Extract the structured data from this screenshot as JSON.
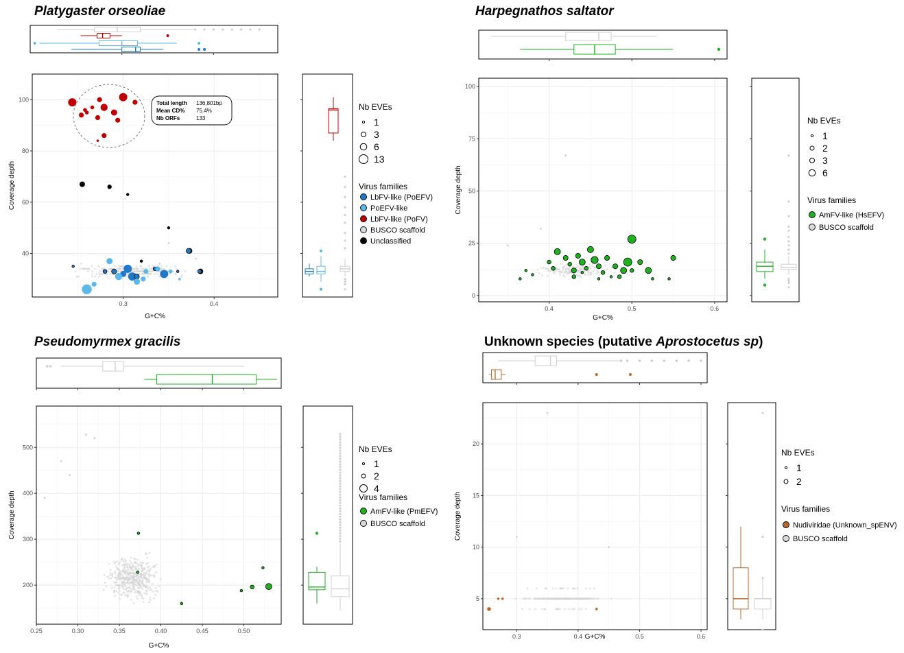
{
  "colors": {
    "lbfv_poefv": "#1f78c8",
    "poefv": "#5bb8e8",
    "lbfv_pofv": "#c00000",
    "unclassified": "#000000",
    "busco": "#d9d9d9",
    "green": "#1fb21f",
    "brown": "#b8682e",
    "grid": "#ebebeb"
  },
  "panels": [
    {
      "title_parts": [
        {
          "text": "Platygaster orseoliae",
          "italic": true
        }
      ],
      "xlabel": "G+C%",
      "ylabel": "Coverage depth",
      "xticks": [
        "0.3",
        "0.4"
      ],
      "yticks": [
        "40",
        "60",
        "80",
        "100"
      ],
      "legend": {
        "size_title": "Nb EVEs",
        "sizes": [
          "1",
          "3",
          "6",
          "13"
        ],
        "family_title": "Virus families",
        "families": [
          {
            "label": "LbFV-like (PoEFV)",
            "color": "#1f78c8"
          },
          {
            "label": "PoEFV-like",
            "color": "#5bb8e8"
          },
          {
            "label": "LbFV-like (PoFV)",
            "color": "#c00000"
          },
          {
            "label": "BUSCO scaffold",
            "color": "#d9d9d9"
          },
          {
            "label": "Unclassified",
            "color": "#000000"
          }
        ]
      },
      "annotation": {
        "rows": [
          {
            "key": "Total length",
            "value": "136,801bp"
          },
          {
            "key": "Mean CD%",
            "value": "75.4%"
          },
          {
            "key": "Nb ORFs",
            "value": "133"
          }
        ]
      }
    },
    {
      "title_parts": [
        {
          "text": "Harpegnathos saltator",
          "italic": true
        }
      ],
      "xlabel": "G+C%",
      "ylabel": "Coverage depth",
      "xticks": [
        "0.4",
        "0.5",
        "0.6"
      ],
      "yticks": [
        "0",
        "25",
        "50",
        "75",
        "100"
      ],
      "legend": {
        "size_title": "Nb EVEs",
        "sizes": [
          "1",
          "2",
          "3",
          "6"
        ],
        "family_title": "Virus families",
        "families": [
          {
            "label": "AmFV-like (HsEFV)",
            "color": "#1fb21f"
          },
          {
            "label": "BUSCO scaffold",
            "color": "#d9d9d9"
          }
        ]
      }
    },
    {
      "title_parts": [
        {
          "text": "Pseudomyrmex gracilis",
          "italic": true
        }
      ],
      "xlabel": "G+C%",
      "ylabel": "Coverage depth",
      "xticks": [
        "0.25",
        "0.30",
        "0.35",
        "0.40",
        "0.45",
        "0.50"
      ],
      "yticks": [
        "200",
        "300",
        "400",
        "500"
      ],
      "legend": {
        "size_title": "Nb EVEs",
        "sizes": [
          "1",
          "2",
          "4"
        ],
        "family_title": "Virus families",
        "families": [
          {
            "label": "AmFV-like (PmEFV)",
            "color": "#1fb21f"
          },
          {
            "label": "BUSCO scaffold",
            "color": "#d9d9d9"
          }
        ]
      }
    },
    {
      "title_parts": [
        {
          "text": "Unknown species (putative ",
          "italic": false
        },
        {
          "text": "Aprostocetus sp",
          "italic": true
        },
        {
          "text": ")",
          "italic": false
        }
      ],
      "xlabel": "G+C%",
      "ylabel": "Coverage depth",
      "xticks": [
        "0.3",
        "0.4",
        "0.5",
        "0.6"
      ],
      "yticks": [
        "5",
        "10",
        "15",
        "20"
      ],
      "legend": {
        "size_title": "Nb EVEs",
        "sizes": [
          "1",
          "2"
        ],
        "family_title": "Virus families",
        "families": [
          {
            "label": "Nudiviridae (Unknown_spENV)",
            "color": "#b8682e"
          },
          {
            "label": "BUSCO scaffold",
            "color": "#d9d9d9"
          }
        ]
      }
    }
  ],
  "chart_data": [
    {
      "type": "scatter",
      "xlim": [
        0.2,
        0.47
      ],
      "ylim": [
        23,
        110
      ],
      "grid": true,
      "series": [
        {
          "name": "LbFV-like (PoFV)",
          "color": "#c00000",
          "points": [
            [
              0.244,
              99,
              6
            ],
            [
              0.254,
              94,
              3
            ],
            [
              0.258,
              96,
              2
            ],
            [
              0.266,
              97,
              2
            ],
            [
              0.274,
              100,
              3
            ],
            [
              0.279,
              97,
              5
            ],
            [
              0.272,
              93,
              3
            ],
            [
              0.29,
              95,
              4
            ],
            [
              0.294,
              92,
              3
            ],
            [
              0.3,
              101,
              6
            ],
            [
              0.313,
              99,
              3
            ],
            [
              0.272,
              84,
              1
            ],
            [
              0.279,
              86,
              3
            ],
            [
              0.26,
              95,
              2
            ]
          ]
        },
        {
          "name": "Unclassified",
          "color": "#000000",
          "points": [
            [
              0.255,
              67,
              3
            ],
            [
              0.285,
              66,
              2
            ],
            [
              0.305,
              63,
              1
            ],
            [
              0.35,
              50,
              1
            ],
            [
              0.373,
              41,
              3
            ],
            [
              0.385,
              33,
              3
            ],
            [
              0.32,
              37,
              1
            ]
          ]
        },
        {
          "name": "LbFV-like (PoEFV)",
          "color": "#1f78c8",
          "points": [
            [
              0.245,
              35,
              1
            ],
            [
              0.28,
              33,
              2
            ],
            [
              0.29,
              33,
              3
            ],
            [
              0.3,
              32,
              4
            ],
            [
              0.305,
              34,
              6
            ],
            [
              0.31,
              31,
              6
            ],
            [
              0.315,
              31,
              3
            ],
            [
              0.345,
              32,
              6
            ],
            [
              0.335,
              34,
              2
            ],
            [
              0.36,
              33,
              1
            ],
            [
              0.384,
              33,
              2
            ],
            [
              0.372,
              41,
              3
            ]
          ]
        },
        {
          "name": "PoEFV-like",
          "color": "#5bb8e8",
          "points": [
            [
              0.26,
              26,
              8
            ],
            [
              0.268,
              28,
              3
            ],
            [
              0.285,
              37,
              4
            ],
            [
              0.295,
              31,
              5
            ],
            [
              0.315,
              29,
              4
            ],
            [
              0.322,
              30,
              3
            ],
            [
              0.325,
              33,
              3
            ],
            [
              0.338,
              34,
              3
            ],
            [
              0.352,
              33,
              2
            ],
            [
              0.362,
              30,
              1
            ]
          ]
        }
      ]
    },
    {
      "type": "scatter",
      "xlim": [
        0.315,
        0.615
      ],
      "ylim": [
        -3,
        104
      ],
      "grid": true,
      "series": [
        {
          "name": "AmFV-like (HsEFV)",
          "color": "#1fb21f",
          "points": [
            [
              0.365,
              8,
              1
            ],
            [
              0.372,
              12,
              1
            ],
            [
              0.38,
              10,
              1
            ],
            [
              0.4,
              16,
              2
            ],
            [
              0.405,
              13,
              2
            ],
            [
              0.41,
              21,
              4
            ],
            [
              0.42,
              18,
              3
            ],
            [
              0.425,
              15,
              2
            ],
            [
              0.43,
              12,
              3
            ],
            [
              0.435,
              19,
              3
            ],
            [
              0.44,
              16,
              4
            ],
            [
              0.445,
              13,
              2
            ],
            [
              0.45,
              22,
              4
            ],
            [
              0.455,
              17,
              5
            ],
            [
              0.46,
              14,
              3
            ],
            [
              0.465,
              11,
              2
            ],
            [
              0.47,
              18,
              3
            ],
            [
              0.48,
              14,
              3
            ],
            [
              0.485,
              9,
              2
            ],
            [
              0.49,
              12,
              4
            ],
            [
              0.495,
              16,
              6
            ],
            [
              0.5,
              27,
              6
            ],
            [
              0.51,
              16,
              3
            ],
            [
              0.52,
              12,
              4
            ],
            [
              0.525,
              8,
              1
            ],
            [
              0.55,
              18,
              3
            ],
            [
              0.545,
              8,
              1
            ],
            [
              0.43,
              9,
              2
            ],
            [
              0.46,
              8,
              1
            ],
            [
              0.475,
              9,
              1
            ],
            [
              0.5,
              12,
              2
            ],
            [
              0.44,
              11,
              1
            ]
          ]
        }
      ]
    },
    {
      "type": "scatter",
      "xlim": [
        0.25,
        0.545
      ],
      "ylim": [
        115,
        590
      ],
      "grid": true,
      "series": [
        {
          "name": "AmFV-like (PmEFV)",
          "color": "#1fb21f",
          "points": [
            [
              0.373,
              313,
              1
            ],
            [
              0.372,
              228,
              1
            ],
            [
              0.425,
              160,
              1
            ],
            [
              0.497,
              188,
              1
            ],
            [
              0.51,
              196,
              2
            ],
            [
              0.53,
              197,
              4
            ],
            [
              0.523,
              238,
              1
            ]
          ]
        }
      ]
    },
    {
      "type": "scatter",
      "xlim": [
        0.245,
        0.61
      ],
      "ylim": [
        2,
        24
      ],
      "grid": true,
      "series": [
        {
          "name": "Nudiviridae (Unknown_spENV)",
          "color": "#b8682e",
          "points": [
            [
              0.255,
              4,
              2
            ],
            [
              0.27,
              5,
              1
            ],
            [
              0.277,
              5,
              1
            ],
            [
              0.43,
              4,
              1
            ]
          ]
        }
      ]
    }
  ]
}
